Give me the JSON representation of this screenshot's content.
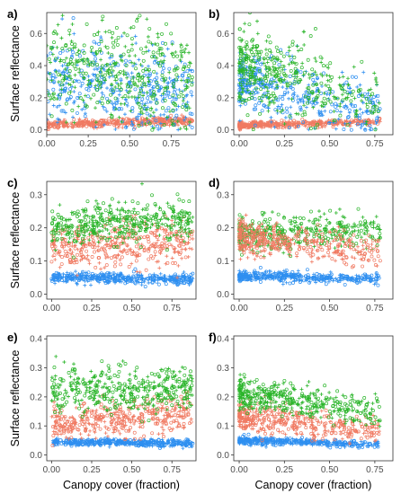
{
  "figure": {
    "ylabel": "Surface reflectance",
    "xlabel": "Canopy cover (fraction)"
  },
  "series_colors": {
    "green": "#2bb52b",
    "red": "#f07a62",
    "blue": "#2e8ff0"
  },
  "chart_data": [
    {
      "id": "a",
      "label": "a)",
      "type": "scatter",
      "xlim": [
        0,
        0.9
      ],
      "ylim": [
        -0.03,
        0.73
      ],
      "xticks": [
        "0.00",
        "0.25",
        "0.50",
        "0.75"
      ],
      "xtick_values": [
        0,
        0.25,
        0.5,
        0.75
      ],
      "yticks": [
        "0.0",
        "0.2",
        "0.4",
        "0.6"
      ],
      "ytick_values": [
        0,
        0.2,
        0.4,
        0.6
      ],
      "show_ylabel": true,
      "show_xlabel": false,
      "series": [
        {
          "color_key": "red",
          "cover": [
            0.0,
            0.88
          ],
          "value_at_0": 0.03,
          "value_at_1": 0.06,
          "spread": 0.012
        },
        {
          "color_key": "blue",
          "cover": [
            0.0,
            0.88
          ],
          "value_at_0": 0.3,
          "value_at_1": 0.22,
          "spread": 0.13
        },
        {
          "color_key": "green",
          "cover": [
            0.0,
            0.88
          ],
          "value_at_0": 0.38,
          "value_at_1": 0.3,
          "spread": 0.16
        }
      ]
    },
    {
      "id": "b",
      "label": "b)",
      "type": "scatter",
      "xlim": [
        -0.03,
        0.85
      ],
      "ylim": [
        -0.03,
        0.73
      ],
      "xticks": [
        "0.00",
        "0.25",
        "0.50",
        "0.75"
      ],
      "xtick_values": [
        0,
        0.25,
        0.5,
        0.75
      ],
      "yticks": [
        "0.0",
        "0.2",
        "0.4",
        "0.6"
      ],
      "ytick_values": [
        0,
        0.2,
        0.4,
        0.6
      ],
      "show_ylabel": false,
      "show_xlabel": false,
      "series": [
        {
          "color_key": "red",
          "cover": [
            0.0,
            0.78
          ],
          "value_at_0": 0.03,
          "value_at_1": 0.05,
          "spread": 0.01
        },
        {
          "color_key": "blue",
          "cover": [
            0.0,
            0.78
          ],
          "value_at_0": 0.3,
          "value_at_1": 0.08,
          "spread": 0.1
        },
        {
          "color_key": "green",
          "cover": [
            0.0,
            0.78
          ],
          "value_at_0": 0.42,
          "value_at_1": 0.18,
          "spread": 0.12
        }
      ]
    },
    {
      "id": "c",
      "label": "c)",
      "type": "scatter",
      "xlim": [
        -0.03,
        0.9
      ],
      "ylim": [
        -0.015,
        0.34
      ],
      "xticks": [
        "0.00",
        "0.25",
        "0.50",
        "0.75"
      ],
      "xtick_values": [
        0,
        0.25,
        0.5,
        0.75
      ],
      "yticks": [
        "0.0",
        "0.1",
        "0.2",
        "0.3"
      ],
      "ytick_values": [
        0,
        0.1,
        0.2,
        0.3
      ],
      "show_ylabel": true,
      "show_xlabel": false,
      "series": [
        {
          "color_key": "blue",
          "cover": [
            0.0,
            0.88
          ],
          "value_at_0": 0.05,
          "value_at_1": 0.045,
          "spread": 0.008
        },
        {
          "color_key": "red",
          "cover": [
            0.0,
            0.88
          ],
          "value_at_0": 0.14,
          "value_at_1": 0.16,
          "spread": 0.035
        },
        {
          "color_key": "green",
          "cover": [
            0.0,
            0.88
          ],
          "value_at_0": 0.2,
          "value_at_1": 0.23,
          "spread": 0.03
        }
      ]
    },
    {
      "id": "d",
      "label": "d)",
      "type": "scatter",
      "xlim": [
        -0.03,
        0.85
      ],
      "ylim": [
        -0.015,
        0.34
      ],
      "xticks": [
        "0.00",
        "0.25",
        "0.50",
        "0.75"
      ],
      "xtick_values": [
        0,
        0.25,
        0.5,
        0.75
      ],
      "yticks": [
        "0.0",
        "0.1",
        "0.2",
        "0.3"
      ],
      "ytick_values": [
        0,
        0.1,
        0.2,
        0.3
      ],
      "show_ylabel": false,
      "show_xlabel": false,
      "series": [
        {
          "color_key": "blue",
          "cover": [
            0.0,
            0.78
          ],
          "value_at_0": 0.055,
          "value_at_1": 0.045,
          "spread": 0.008
        },
        {
          "color_key": "green",
          "cover": [
            0.0,
            0.78
          ],
          "value_at_0": 0.18,
          "value_at_1": 0.19,
          "spread": 0.025
        },
        {
          "color_key": "red",
          "cover": [
            0.0,
            0.78
          ],
          "value_at_0": 0.17,
          "value_at_1": 0.13,
          "spread": 0.025
        }
      ]
    },
    {
      "id": "e",
      "label": "e)",
      "type": "scatter",
      "xlim": [
        -0.03,
        0.9
      ],
      "ylim": [
        -0.02,
        0.41
      ],
      "xticks": [
        "0.00",
        "0.25",
        "0.50",
        "0.75"
      ],
      "xtick_values": [
        0,
        0.25,
        0.5,
        0.75
      ],
      "yticks": [
        "0.0",
        "0.1",
        "0.2",
        "0.3",
        "0.4"
      ],
      "ytick_values": [
        0,
        0.1,
        0.2,
        0.3,
        0.4
      ],
      "show_ylabel": true,
      "show_xlabel": true,
      "series": [
        {
          "color_key": "blue",
          "cover": [
            0.0,
            0.88
          ],
          "value_at_0": 0.045,
          "value_at_1": 0.04,
          "spread": 0.006
        },
        {
          "color_key": "red",
          "cover": [
            0.0,
            0.88
          ],
          "value_at_0": 0.11,
          "value_at_1": 0.14,
          "spread": 0.03
        },
        {
          "color_key": "green",
          "cover": [
            0.0,
            0.88
          ],
          "value_at_0": 0.22,
          "value_at_1": 0.23,
          "spread": 0.04
        }
      ]
    },
    {
      "id": "f",
      "label": "f)",
      "type": "scatter",
      "xlim": [
        -0.03,
        0.85
      ],
      "ylim": [
        -0.02,
        0.41
      ],
      "xticks": [
        "0.00",
        "0.25",
        "0.50",
        "0.75"
      ],
      "xtick_values": [
        0,
        0.25,
        0.5,
        0.75
      ],
      "yticks": [
        "0.0",
        "0.1",
        "0.2",
        "0.3",
        "0.4"
      ],
      "ytick_values": [
        0,
        0.1,
        0.2,
        0.3,
        0.4
      ],
      "show_ylabel": false,
      "show_xlabel": true,
      "series": [
        {
          "color_key": "blue",
          "cover": [
            0.0,
            0.78
          ],
          "value_at_0": 0.05,
          "value_at_1": 0.035,
          "spread": 0.006
        },
        {
          "color_key": "red",
          "cover": [
            0.0,
            0.78
          ],
          "value_at_0": 0.13,
          "value_at_1": 0.09,
          "spread": 0.025
        },
        {
          "color_key": "green",
          "cover": [
            0.0,
            0.78
          ],
          "value_at_0": 0.21,
          "value_at_1": 0.15,
          "spread": 0.025
        }
      ]
    }
  ]
}
